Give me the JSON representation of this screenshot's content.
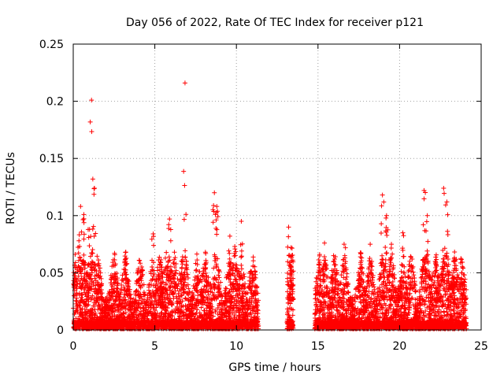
{
  "chart_data": {
    "type": "scatter",
    "title": "Day 056 of 2022, Rate Of TEC Index for receiver p121",
    "xlabel": "GPS time / hours",
    "ylabel": "ROTI / TECUs",
    "xlim": [
      0,
      25
    ],
    "ylim": [
      0,
      0.25
    ],
    "x_ticks": [
      0,
      5,
      10,
      15,
      20,
      25
    ],
    "x_tick_labels": [
      "0",
      "5",
      "10",
      "15",
      "20",
      "25"
    ],
    "y_ticks": [
      0,
      0.05,
      0.1,
      0.15,
      0.2,
      0.25
    ],
    "y_tick_labels": [
      "0",
      "0.05",
      "0.1",
      "0.15",
      "0.2",
      "0.25"
    ],
    "grid": true,
    "marker": "+",
    "color": "#ff0000",
    "series": [
      {
        "name": "ROTI",
        "segments": [
          {
            "start": 0.0,
            "end": 11.35,
            "peaks": [
              [
                0.15,
                0.045
              ],
              [
                0.35,
                0.078
              ],
              [
                0.45,
                0.108
              ],
              [
                0.65,
                0.101
              ],
              [
                1.0,
                0.088
              ],
              [
                1.12,
                0.201
              ],
              [
                1.2,
                0.132
              ],
              [
                1.3,
                0.124
              ],
              [
                1.5,
                0.057
              ],
              [
                2.5,
                0.045
              ],
              [
                3.2,
                0.062
              ],
              [
                4.1,
                0.05
              ],
              [
                4.9,
                0.084
              ],
              [
                5.3,
                0.045
              ],
              [
                5.7,
                0.055
              ],
              [
                5.9,
                0.097
              ],
              [
                6.2,
                0.068
              ],
              [
                6.85,
                0.216
              ],
              [
                6.7,
                0.064
              ],
              [
                7.6,
                0.045
              ],
              [
                8.1,
                0.068
              ],
              [
                8.65,
                0.12
              ],
              [
                8.8,
                0.108
              ],
              [
                9.6,
                0.082
              ],
              [
                9.9,
                0.073
              ],
              [
                10.3,
                0.095
              ],
              [
                11.0,
                0.045
              ]
            ]
          },
          {
            "start": 13.1,
            "end": 13.5,
            "peaks": [
              [
                13.2,
                0.09
              ],
              [
                13.35,
                0.072
              ],
              [
                13.4,
                0.04
              ]
            ]
          },
          {
            "start": 14.8,
            "end": 24.1,
            "peaks": [
              [
                15.1,
                0.066
              ],
              [
                15.4,
                0.076
              ],
              [
                16.0,
                0.057
              ],
              [
                16.6,
                0.075
              ],
              [
                17.6,
                0.064
              ],
              [
                18.2,
                0.075
              ],
              [
                18.95,
                0.118
              ],
              [
                19.2,
                0.1
              ],
              [
                19.5,
                0.075
              ],
              [
                20.2,
                0.085
              ],
              [
                20.7,
                0.045
              ],
              [
                21.5,
                0.122
              ],
              [
                21.7,
                0.1
              ],
              [
                22.2,
                0.06
              ],
              [
                22.7,
                0.124
              ],
              [
                22.9,
                0.112
              ],
              [
                23.4,
                0.06
              ],
              [
                23.8,
                0.05
              ]
            ]
          }
        ]
      }
    ]
  }
}
